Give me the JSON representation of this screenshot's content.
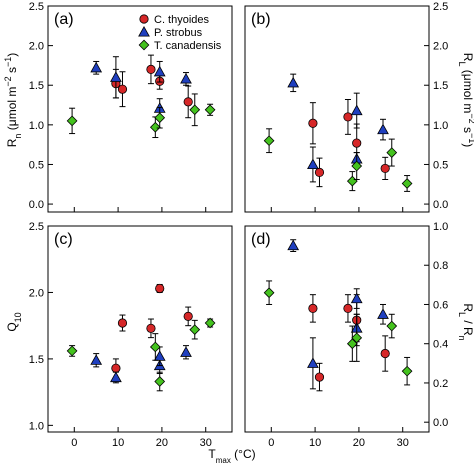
{
  "colors": {
    "C. thyoides": "#d62728",
    "P. strobus": "#1f3fbf",
    "T. canadensis": "#44c21e"
  },
  "markers": {
    "C. thyoides": "circle",
    "P. strobus": "triangle",
    "T. canadensis": "diamond"
  },
  "xlabel": {
    "main": "T",
    "sub": "max",
    "unit": " (°C)"
  },
  "chart_data": [
    {
      "id": "a",
      "type": "scatter",
      "panel_label": "(a)",
      "ylabel": "R_n (μmol m⁻² s⁻¹)",
      "ylim": [
        -0.1,
        2.5
      ],
      "yticks": [
        "0.0",
        "0.5",
        "1.0",
        "1.5",
        "2.0",
        "2.5"
      ],
      "ytick_side": "left",
      "xlim": [
        -6,
        36
      ],
      "xticks": [
        0,
        10,
        20,
        30
      ],
      "legend": [
        "C. thyoides",
        "P. strobus",
        "T. canadensis"
      ],
      "series": [
        {
          "name": "C. thyoides",
          "points": [
            [
              9.5,
              1.52,
              0.18
            ],
            [
              11,
              1.45,
              0.22
            ],
            [
              17.5,
              1.7,
              0.18
            ],
            [
              19.5,
              1.55,
              0.1
            ],
            [
              26,
              1.29,
              0.2
            ]
          ]
        },
        {
          "name": "P. strobus",
          "points": [
            [
              5,
              1.72,
              0.08
            ],
            [
              9.5,
              1.6,
              0.26
            ],
            [
              19.5,
              1.21,
              0.12
            ],
            [
              19.5,
              1.67,
              0.13
            ],
            [
              25.5,
              1.58,
              0.08
            ]
          ]
        },
        {
          "name": "T. canadensis",
          "points": [
            [
              -0.5,
              1.05,
              0.16
            ],
            [
              18.5,
              0.97,
              0.13
            ],
            [
              19.5,
              1.09,
              0.13
            ],
            [
              27.5,
              1.19,
              0.2
            ],
            [
              31,
              1.19,
              0.07
            ]
          ]
        }
      ]
    },
    {
      "id": "b",
      "type": "scatter",
      "panel_label": "(b)",
      "ylabel": "R_L (μmol m⁻² s⁻¹)",
      "ylim": [
        -0.1,
        2.5
      ],
      "yticks": [
        "0.0",
        "0.5",
        "1.0",
        "1.5",
        "2.0",
        "2.5"
      ],
      "ytick_side": "right",
      "xlim": [
        -6,
        36
      ],
      "xticks": [
        0,
        10,
        20,
        30
      ],
      "series": [
        {
          "name": "C. thyoides",
          "points": [
            [
              9.5,
              1.02,
              0.26
            ],
            [
              11,
              0.4,
              0.18
            ],
            [
              17.5,
              1.1,
              0.22
            ],
            [
              19.5,
              0.77,
              0.24
            ],
            [
              26,
              0.45,
              0.14
            ]
          ]
        },
        {
          "name": "P. strobus",
          "points": [
            [
              5,
              1.53,
              0.11
            ],
            [
              9.5,
              0.5,
              0.22
            ],
            [
              19.5,
              0.57,
              0.08
            ],
            [
              19.5,
              1.18,
              0.22
            ],
            [
              25.5,
              0.94,
              0.13
            ]
          ]
        },
        {
          "name": "T. canadensis",
          "points": [
            [
              -0.5,
              0.8,
              0.15
            ],
            [
              18.5,
              0.29,
              0.12
            ],
            [
              19.5,
              0.48,
              0.17
            ],
            [
              27.5,
              0.65,
              0.17
            ],
            [
              31,
              0.26,
              0.1
            ]
          ]
        }
      ]
    },
    {
      "id": "c",
      "type": "scatter",
      "panel_label": "(c)",
      "ylabel": "Q_10",
      "ylim": [
        0.95,
        2.5
      ],
      "yticks": [
        "1.0",
        "1.5",
        "2.0",
        "2.5"
      ],
      "ytick_side": "left",
      "xlim": [
        -6,
        36
      ],
      "xticks": [
        0,
        10,
        20,
        30
      ],
      "series": [
        {
          "name": "C. thyoides",
          "points": [
            [
              9.5,
              1.43,
              0.07
            ],
            [
              11,
              1.77,
              0.06
            ],
            [
              17.5,
              1.73,
              0.07
            ],
            [
              19.5,
              2.03,
              0.03
            ],
            [
              26,
              1.82,
              0.07
            ]
          ]
        },
        {
          "name": "P. strobus",
          "points": [
            [
              5,
              1.49,
              0.05
            ],
            [
              9.5,
              1.36,
              0.04
            ],
            [
              19.5,
              1.45,
              0.06
            ],
            [
              19.5,
              1.52,
              0.07
            ],
            [
              25.5,
              1.55,
              0.05
            ]
          ]
        },
        {
          "name": "T. canadensis",
          "points": [
            [
              -0.5,
              1.56,
              0.04
            ],
            [
              18.5,
              1.59,
              0.1
            ],
            [
              19.5,
              1.33,
              0.07
            ],
            [
              27.5,
              1.72,
              0.07
            ],
            [
              31,
              1.77,
              0.03
            ]
          ]
        }
      ]
    },
    {
      "id": "d",
      "type": "scatter",
      "panel_label": "(d)",
      "ylabel": "R_L / R_n",
      "ylim": [
        -0.05,
        1.0
      ],
      "yticks": [
        "0.0",
        "0.2",
        "0.4",
        "0.6",
        "0.8",
        "1.0"
      ],
      "ytick_side": "right",
      "xlim": [
        -6,
        36
      ],
      "xticks": [
        0,
        10,
        20,
        30
      ],
      "series": [
        {
          "name": "C. thyoides",
          "points": [
            [
              9.5,
              0.58,
              0.07
            ],
            [
              11,
              0.23,
              0.07
            ],
            [
              17.5,
              0.58,
              0.07
            ],
            [
              19.5,
              0.52,
              0.13
            ],
            [
              26,
              0.35,
              0.09
            ]
          ]
        },
        {
          "name": "P. strobus",
          "points": [
            [
              5,
              0.9,
              0.03
            ],
            [
              9.5,
              0.3,
              0.13
            ],
            [
              19.5,
              0.48,
              0.07
            ],
            [
              19.5,
              0.63,
              0.05
            ],
            [
              25.5,
              0.55,
              0.05
            ]
          ]
        },
        {
          "name": "T. canadensis",
          "points": [
            [
              -0.5,
              0.66,
              0.06
            ],
            [
              18.5,
              0.4,
              0.09
            ],
            [
              19.5,
              0.43,
              0.12
            ],
            [
              27.5,
              0.49,
              0.06
            ],
            [
              31,
              0.26,
              0.07
            ]
          ]
        }
      ]
    }
  ]
}
